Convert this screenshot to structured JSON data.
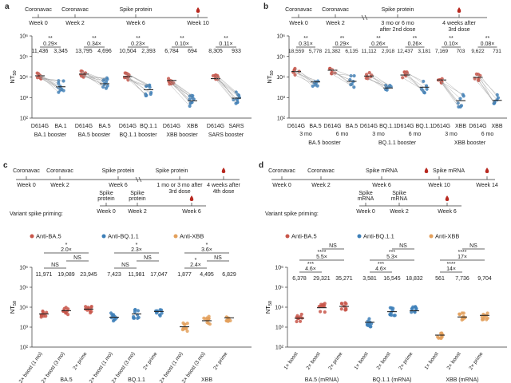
{
  "colors": {
    "red": "#c8564a",
    "blue": "#3d7fb8",
    "orange": "#e3a05c",
    "gray": "#999999",
    "drop": "#b8281f"
  },
  "panels": {
    "a": {
      "label": "a",
      "timeline": {
        "events": [
          "Coronavac",
          "Coronavac",
          "Spike protein"
        ],
        "weeks": [
          "Week 0",
          "Week 2",
          "Week 6",
          "Week 10"
        ]
      },
      "ylabel": "NT",
      "ylabel_sub": "50"
    },
    "b": {
      "label": "b",
      "timeline": {
        "events": [
          "Coronavac",
          "Coronavac",
          "Spike protein"
        ],
        "weeks": [
          "Week 0",
          "Week 2",
          "3 mo or 6 mo after 2nd dose",
          "4 weeks after 3rd dose"
        ]
      },
      "ylabel": "NT",
      "ylabel_sub": "50"
    },
    "c": {
      "label": "c",
      "timeline": {
        "events": [
          "Coronavac",
          "Coronavac",
          "Spike protein",
          "Spike protein"
        ],
        "weeks": [
          "Week 0",
          "Week 2",
          "Week 6",
          "1 mo or 3 mo after 3rd dose",
          "4 weeks after 4th dose"
        ]
      },
      "priming": {
        "label": "Variant spike priming:",
        "events": [
          "Spike protein",
          "Spike protein"
        ],
        "weeks": [
          "Week 0",
          "Week 2",
          "Week 6"
        ]
      },
      "ylabel": "NT",
      "ylabel_sub": "50"
    },
    "d": {
      "label": "d",
      "timeline": {
        "events": [
          "Coronavac",
          "Coronavac",
          "Spike mRNA",
          "Spike mRNA"
        ],
        "weeks": [
          "Week 0",
          "Week 2",
          "Week 6",
          "Week 10",
          "Week 14"
        ]
      },
      "priming": {
        "label": "Variant spike priming:",
        "events": [
          "Spike mRNA",
          "Spike mRNA"
        ],
        "weeks": [
          "Week 0",
          "Week 2",
          "Week 6"
        ]
      },
      "ylabel": "NT",
      "ylabel_sub": "50"
    }
  },
  "chart_data": [
    {
      "panel": "a",
      "type": "scatter",
      "yscale": "log",
      "ylim": [
        100,
        1000000
      ],
      "yticks": [
        "10²",
        "10³",
        "10⁴",
        "10⁵",
        "10⁶"
      ],
      "groups": [
        {
          "xlabels": [
            "D614G",
            "BA.1"
          ],
          "title": "BA.1 booster",
          "stars": "**",
          "fold": "0.29×",
          "gmts": [
            "11,436",
            "3,345"
          ],
          "values": [
            11436,
            3345
          ]
        },
        {
          "xlabels": [
            "D614G",
            "BA.5"
          ],
          "title": "BA.5 booster",
          "stars": "**",
          "fold": "0.34×",
          "gmts": [
            "13,795",
            "4,696"
          ],
          "values": [
            13795,
            4696
          ]
        },
        {
          "xlabels": [
            "D614G",
            "BQ.1.1"
          ],
          "title": "BQ.1.1 booster",
          "stars": "**",
          "fold": "0.23×",
          "gmts": [
            "10,504",
            "2,393"
          ],
          "values": [
            10504,
            2393
          ]
        },
        {
          "xlabels": [
            "D614G",
            "XBB"
          ],
          "title": "XBB booster",
          "stars": "**",
          "fold": "0.10×",
          "gmts": [
            "6,784",
            "694"
          ],
          "values": [
            6784,
            694
          ]
        },
        {
          "xlabels": [
            "D614G",
            "SARS"
          ],
          "title": "SARS booster",
          "stars": "**",
          "fold": "0.11×",
          "gmts": [
            "8,305",
            "933"
          ],
          "values": [
            8305,
            933
          ]
        }
      ]
    },
    {
      "panel": "b",
      "type": "scatter",
      "yscale": "log",
      "ylim": [
        100,
        1000000
      ],
      "yticks": [
        "10²",
        "10³",
        "10⁴",
        "10⁵",
        "10⁶"
      ],
      "groups": [
        {
          "xlabels": [
            "D614G",
            "BA.5"
          ],
          "sub": "3 mo",
          "stars": "**",
          "fold": "0.31×",
          "gmts": [
            "18,559",
            "5,778"
          ],
          "values": [
            18559,
            5778
          ]
        },
        {
          "xlabels": [
            "D614G",
            "BA.5"
          ],
          "sub": "6 mo",
          "stars": "**",
          "fold": "0.29×",
          "gmts": [
            "21,382",
            "6,135"
          ],
          "values": [
            21382,
            6135
          ]
        },
        {
          "xlabels": [
            "D614G",
            "BQ.1.1"
          ],
          "sub": "3 mo",
          "stars": "**",
          "fold": "0.26×",
          "gmts": [
            "11,112",
            "2,918"
          ],
          "values": [
            11112,
            2918
          ]
        },
        {
          "xlabels": [
            "D614G",
            "BQ.1.1"
          ],
          "sub": "6 mo",
          "stars": "**",
          "fold": "0.26×",
          "gmts": [
            "12,437",
            "3,181"
          ],
          "values": [
            12437,
            3181
          ]
        },
        {
          "xlabels": [
            "D614G",
            "XBB"
          ],
          "sub": "3 mo",
          "stars": "**",
          "fold": "0.10×",
          "gmts": [
            "7,169",
            "703"
          ],
          "values": [
            7169,
            703
          ]
        },
        {
          "xlabels": [
            "D614G",
            "XBB"
          ],
          "sub": "6 mo",
          "stars": "**",
          "fold": "0.08×",
          "gmts": [
            "9,622",
            "731"
          ],
          "values": [
            9622,
            731
          ]
        }
      ],
      "booster_titles": [
        "BA.5 booster",
        "BQ.1.1 booster",
        "XBB booster"
      ]
    },
    {
      "panel": "c",
      "type": "scatter",
      "yscale": "log",
      "ylim": [
        100,
        1000000
      ],
      "yticks": [
        "10²",
        "10³",
        "10⁴",
        "10⁵",
        "10⁶"
      ],
      "legend": [
        "Anti-BA.5",
        "Anti-BQ.1.1",
        "Anti-XBB"
      ],
      "xlabels": [
        "2× boost (1 mo)",
        "2× boost (3 mo)",
        "2× prime"
      ],
      "groups": [
        {
          "name": "BA.5",
          "gmts": [
            "11,971",
            "19,089",
            "23,945"
          ],
          "values": [
            11971,
            19089,
            23945
          ],
          "fold": "2.0×",
          "fold_stars": "*",
          "ns": [
            "NS",
            "NS"
          ]
        },
        {
          "name": "BQ.1.1",
          "gmts": [
            "7,423",
            "11,981",
            "17,047"
          ],
          "values": [
            7423,
            11981,
            17047
          ],
          "fold": "2.3×",
          "fold_stars": "*",
          "ns": [
            "NS",
            "NS"
          ]
        },
        {
          "name": "XBB",
          "gmts": [
            "1,877",
            "4,495",
            "6,829"
          ],
          "values": [
            1877,
            4495,
            6829
          ],
          "fold": "3.6×",
          "fold_stars": "*",
          "ns": [
            "NS"
          ],
          "sub_fold": "2.4×",
          "sub_stars": "*"
        }
      ]
    },
    {
      "panel": "d",
      "type": "scatter",
      "yscale": "log",
      "ylim": [
        100,
        1000000
      ],
      "yticks": [
        "10²",
        "10³",
        "10⁴",
        "10⁵",
        "10⁶"
      ],
      "legend": [
        "Anti-BA.5",
        "Anti-BQ.1.1",
        "Anti-XBB"
      ],
      "xlabels": [
        "1× boost",
        "2× boost",
        "2× prime"
      ],
      "groups": [
        {
          "name": "BA.5 (mRNA)",
          "gmts": [
            "6,378",
            "29,321",
            "35,271"
          ],
          "values": [
            6378,
            29321,
            35271
          ],
          "fold": "5.5×",
          "fold_stars": "****",
          "sub_fold": "4.6×",
          "sub_stars": "***",
          "ns": "NS"
        },
        {
          "name": "BQ.1.1 (mRNA)",
          "gmts": [
            "3,581",
            "16,545",
            "18,832"
          ],
          "values": [
            3581,
            16545,
            18832
          ],
          "fold": "5.3×",
          "fold_stars": "***",
          "sub_fold": "4.6×",
          "sub_stars": "***",
          "ns": "NS"
        },
        {
          "name": "XBB (mRNA)",
          "gmts": [
            "561",
            "7,736",
            "9,704"
          ],
          "values": [
            561,
            7736,
            9704
          ],
          "fold": "17×",
          "fold_stars": "****",
          "sub_fold": "14×",
          "sub_stars": "****",
          "ns": "NS"
        }
      ]
    }
  ]
}
